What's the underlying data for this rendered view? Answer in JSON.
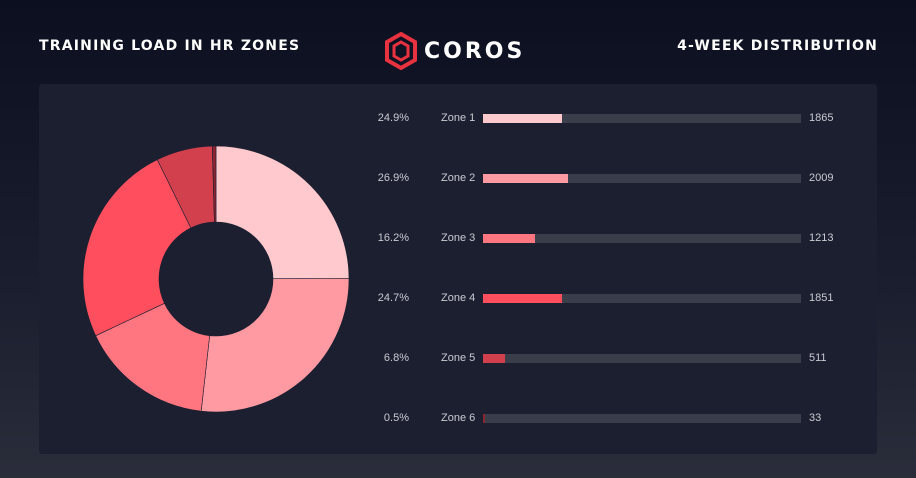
{
  "header": {
    "left_title": "TRAINING LOAD IN HR ZONES",
    "right_title": "4-WEEK DISTRIBUTION",
    "logo_text": "COROS"
  },
  "colors": {
    "zone1": "#ffc9ce",
    "zone2": "#ff9aa3",
    "zone3": "#ff7580",
    "zone4": "#ff4f5f",
    "zone5": "#d2404e",
    "zone6": "#8a2430",
    "logo_red": "#e8323f"
  },
  "chart_data": {
    "type": "pie",
    "donut": true,
    "categories": [
      "Zone 1",
      "Zone 2",
      "Zone 3",
      "Zone 4",
      "Zone 5",
      "Zone 6"
    ],
    "values": [
      1865,
      2009,
      1213,
      1851,
      511,
      33
    ],
    "percentages": [
      "24.9%",
      "26.9%",
      "16.2%",
      "24.7%",
      "6.8%",
      "0.5%"
    ]
  }
}
